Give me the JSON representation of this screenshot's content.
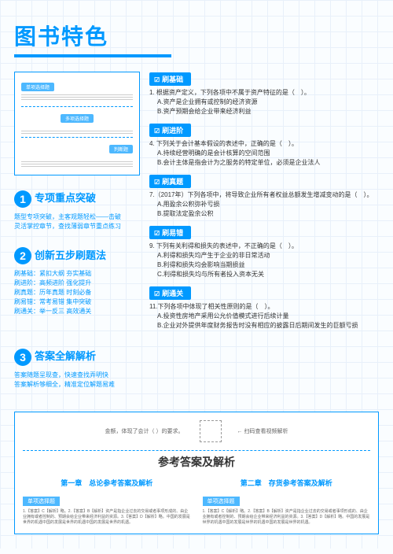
{
  "title": "图书特色",
  "sections": [
    {
      "num": "1",
      "title": "专项重点突破",
      "desc": "题型专项突破，主客观题轻松——击破\n灵活掌控章节，查找薄弱章节重点练习"
    },
    {
      "num": "2",
      "title": "创新五步刷题法",
      "desc": "刷基础：紧扣大纲 夯实基础\n刷进阶：高频进阶 强化提升\n刷真题：历年真题 时刻必备\n刷易错：常考易错 集中突破\n刷通关：举一反三 高效通关"
    },
    {
      "num": "3",
      "title": "答案全解解析",
      "desc": "答案随题呈现查，快速查找弄明快\n答案解析够细全，精准定位解题易难"
    }
  ],
  "right": [
    {
      "tag": "刷基础",
      "q": "1. 根据资产定义，下列各项中不属于资产特征的是（　）。",
      "opts": [
        "A.资产是企业拥有或控制的经济资源",
        "B.资产预期会给企业带来经济利益"
      ]
    },
    {
      "tag": "刷进阶",
      "q": "4. 下列关于会计基本假设的表述中，正确的是（　）。",
      "opts": [
        "A.持续经营明确的是会计核算的空间范围",
        "B.会计主体是指会计为之服务的特定单位，必须是企业法人"
      ]
    },
    {
      "tag": "刷真题",
      "q": "7.（2017年）下列各项中，将导致企业所有者权益总额发生增减变动的是（　）。",
      "opts": [
        "A.用盈余公积弥补亏损",
        "B.提取法定盈余公积"
      ]
    },
    {
      "tag": "刷易错",
      "q": "9. 下列有关利得和损失的表述中，不正确的是（　）。",
      "opts": [
        "A.利得和损失均产生于企业的非日常活动",
        "B.利得和损失均会影响当期损益",
        "C.利得和损失均与所有者投入资本无关"
      ]
    },
    {
      "tag": "刷通关",
      "q": "11.下列各项中体现了相关性原则的是（　）。",
      "opts": [
        "A.投资性房地产采用公允价值模式进行后续计量",
        "B.企业对外提供年度财务报告时没有相应的披露日后期间发生的巨额亏损"
      ]
    }
  ],
  "bottom": {
    "scan_left": "金额，体现了会计（ ）的要求。",
    "scan_right": "← 扫码查看视频解析",
    "title": "参考答案及解析",
    "chapters": [
      "第一章　总论参考答案及解析",
      "第二章　存货参考答案及解析"
    ],
    "tag": "单项选择题",
    "filler": "1.【答案】C【解析】略。2.【答案】B【解析】资产是指企业过去的交易或者事项形成的、由企业拥有或者控制的、预期会给企业带来经济利益的资源。3.【答案】D【解析】略。中国的发展是世界的机遇中国的发展是世界的机遇中国的发展是世界的机遇。"
  },
  "colors": {
    "primary": "#0099ff"
  }
}
